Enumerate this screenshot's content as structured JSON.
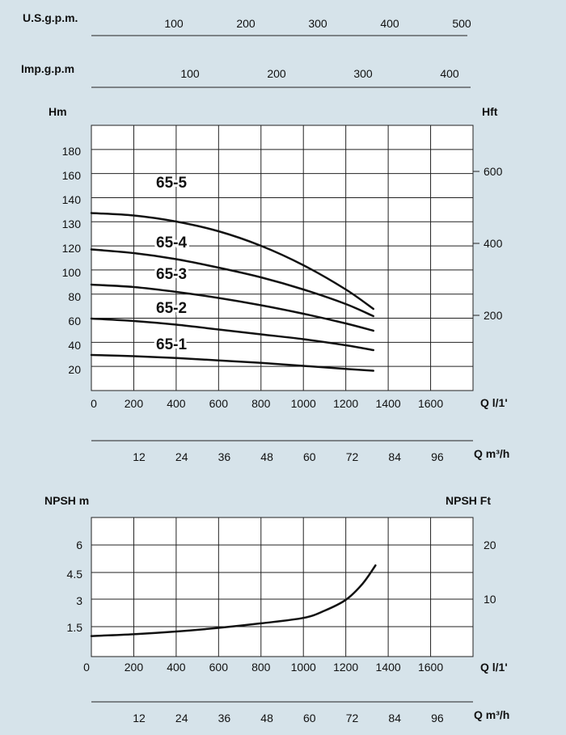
{
  "chart_data": [
    {
      "type": "line",
      "title": "",
      "scales": {
        "usgpm": {
          "label": "U.S.g.p.m.",
          "ticks": [
            "100",
            "200",
            "300",
            "400",
            "500"
          ]
        },
        "impgpm": {
          "label": "Imp.g.p.m",
          "ticks": [
            "100",
            "200",
            "300",
            "400"
          ]
        }
      },
      "ylabel": "Hm",
      "ylabel_right": "Hft",
      "xlabel": "Q l/1'",
      "xlabel2": "Q m³/h",
      "xlim": [
        0,
        1800
      ],
      "ylim": [
        0,
        190
      ],
      "x_ticks": [
        "0",
        "200",
        "400",
        "600",
        "800",
        "1000",
        "1200",
        "1400",
        "1600"
      ],
      "x2_ticks": [
        "12",
        "24",
        "36",
        "48",
        "60",
        "72",
        "84",
        "96"
      ],
      "y_ticks": [
        "20",
        "40",
        "60",
        "80",
        "100",
        "120",
        "130",
        "140",
        "160",
        "180"
      ],
      "y_right_ticks": [
        "200",
        "400",
        "600"
      ],
      "series": [
        {
          "name": "65-5",
          "x": [
            0,
            200,
            400,
            600,
            800,
            1000,
            1200,
            1330
          ],
          "y": [
            147,
            145,
            140,
            132,
            120,
            104,
            84,
            68
          ]
        },
        {
          "name": "65-4",
          "x": [
            0,
            200,
            400,
            600,
            800,
            1000,
            1200,
            1330
          ],
          "y": [
            117,
            114,
            109,
            102,
            94,
            84,
            72,
            62
          ]
        },
        {
          "name": "65-3",
          "x": [
            0,
            200,
            400,
            600,
            800,
            1000,
            1200,
            1330
          ],
          "y": [
            88,
            86,
            82,
            77,
            71,
            64,
            56,
            50
          ]
        },
        {
          "name": "65-2",
          "x": [
            0,
            200,
            400,
            600,
            800,
            1000,
            1200,
            1330
          ],
          "y": [
            60,
            58,
            55,
            51,
            47,
            43,
            38,
            34
          ]
        },
        {
          "name": "65-1",
          "x": [
            0,
            200,
            400,
            600,
            800,
            1000,
            1200,
            1330
          ],
          "y": [
            30,
            29,
            27.5,
            25.5,
            23.5,
            21,
            18.5,
            17
          ]
        }
      ],
      "grid": true
    },
    {
      "type": "line",
      "title": "",
      "ylabel": "NPSH  m",
      "ylabel_right": "NPSH  Ft",
      "xlabel": "Q l/1'",
      "xlabel2": "Q m³/h",
      "xlim": [
        0,
        1800
      ],
      "ylim": [
        0,
        7.5
      ],
      "x_ticks": [
        "0",
        "200",
        "400",
        "600",
        "800",
        "1000",
        "1200",
        "1400",
        "1600"
      ],
      "x2_ticks": [
        "12",
        "24",
        "36",
        "48",
        "60",
        "72",
        "84",
        "96"
      ],
      "y_ticks": [
        "1.5",
        "3",
        "4.5",
        "6"
      ],
      "y_right_ticks": [
        "10",
        "20"
      ],
      "series": [
        {
          "name": "",
          "x": [
            0,
            200,
            400,
            600,
            800,
            1000,
            1100,
            1200,
            1280,
            1340
          ],
          "y": [
            1.0,
            1.1,
            1.25,
            1.45,
            1.7,
            2.0,
            2.4,
            3.0,
            3.9,
            4.9
          ]
        }
      ],
      "grid": true
    }
  ]
}
